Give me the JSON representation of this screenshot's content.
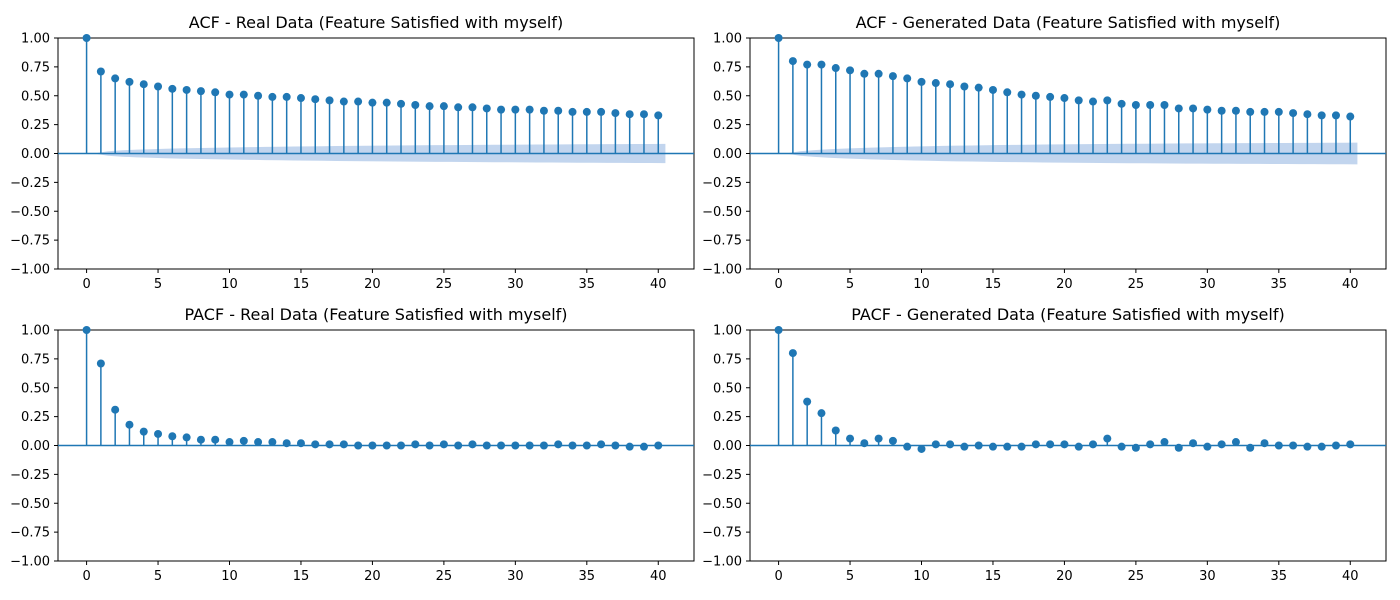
{
  "colors": {
    "stem": "#1f77b4",
    "confidence_band": "#aec7e8",
    "axis": "#000000",
    "background": "#ffffff"
  },
  "chart_data": [
    {
      "id": "acf-real",
      "type": "stem",
      "title": "ACF - Real Data (Feature Satisfied with myself)",
      "xlabel": "",
      "ylabel": "",
      "xlim": [
        -2,
        42.5
      ],
      "ylim": [
        -1.0,
        1.0
      ],
      "xticks": [
        0,
        5,
        10,
        15,
        20,
        25,
        30,
        35,
        40
      ],
      "yticks": [
        1.0,
        0.75,
        0.5,
        0.25,
        0.0,
        -0.25,
        -0.5,
        -0.75,
        -1.0
      ],
      "ytick_labels": [
        "1.00",
        "0.75",
        "0.50",
        "0.25",
        "0.00",
        "−0.25",
        "−0.50",
        "−0.75",
        "−1.00"
      ],
      "grid": false,
      "confidence_band": true,
      "x": [
        0,
        1,
        2,
        3,
        4,
        5,
        6,
        7,
        8,
        9,
        10,
        11,
        12,
        13,
        14,
        15,
        16,
        17,
        18,
        19,
        20,
        21,
        22,
        23,
        24,
        25,
        26,
        27,
        28,
        29,
        30,
        31,
        32,
        33,
        34,
        35,
        36,
        37,
        38,
        39,
        40
      ],
      "values": [
        1.0,
        0.71,
        0.65,
        0.62,
        0.6,
        0.58,
        0.56,
        0.55,
        0.54,
        0.53,
        0.51,
        0.51,
        0.5,
        0.49,
        0.49,
        0.48,
        0.47,
        0.46,
        0.45,
        0.45,
        0.44,
        0.44,
        0.43,
        0.42,
        0.41,
        0.41,
        0.4,
        0.4,
        0.39,
        0.38,
        0.38,
        0.38,
        0.37,
        0.37,
        0.36,
        0.36,
        0.36,
        0.35,
        0.34,
        0.34,
        0.33
      ]
    },
    {
      "id": "acf-generated",
      "type": "stem",
      "title": "ACF - Generated Data (Feature Satisfied with myself)",
      "xlabel": "",
      "ylabel": "",
      "xlim": [
        -2,
        42.5
      ],
      "ylim": [
        -1.0,
        1.0
      ],
      "xticks": [
        0,
        5,
        10,
        15,
        20,
        25,
        30,
        35,
        40
      ],
      "yticks": [
        1.0,
        0.75,
        0.5,
        0.25,
        0.0,
        -0.25,
        -0.5,
        -0.75,
        -1.0
      ],
      "ytick_labels": [
        "1.00",
        "0.75",
        "0.50",
        "0.25",
        "0.00",
        "−0.25",
        "−0.50",
        "−0.75",
        "−1.00"
      ],
      "grid": false,
      "confidence_band": true,
      "x": [
        0,
        1,
        2,
        3,
        4,
        5,
        6,
        7,
        8,
        9,
        10,
        11,
        12,
        13,
        14,
        15,
        16,
        17,
        18,
        19,
        20,
        21,
        22,
        23,
        24,
        25,
        26,
        27,
        28,
        29,
        30,
        31,
        32,
        33,
        34,
        35,
        36,
        37,
        38,
        39,
        40
      ],
      "values": [
        1.0,
        0.8,
        0.77,
        0.77,
        0.74,
        0.72,
        0.69,
        0.69,
        0.67,
        0.65,
        0.62,
        0.61,
        0.6,
        0.58,
        0.57,
        0.55,
        0.53,
        0.51,
        0.5,
        0.49,
        0.48,
        0.46,
        0.45,
        0.46,
        0.43,
        0.42,
        0.42,
        0.42,
        0.39,
        0.39,
        0.38,
        0.37,
        0.37,
        0.36,
        0.36,
        0.36,
        0.35,
        0.34,
        0.33,
        0.33,
        0.32
      ]
    },
    {
      "id": "pacf-real",
      "type": "stem",
      "title": "PACF - Real Data (Feature Satisfied with myself)",
      "xlabel": "",
      "ylabel": "",
      "xlim": [
        -2,
        42.5
      ],
      "ylim": [
        -1.0,
        1.0
      ],
      "xticks": [
        0,
        5,
        10,
        15,
        20,
        25,
        30,
        35,
        40
      ],
      "yticks": [
        1.0,
        0.75,
        0.5,
        0.25,
        0.0,
        -0.25,
        -0.5,
        -0.75,
        -1.0
      ],
      "ytick_labels": [
        "1.00",
        "0.75",
        "0.50",
        "0.25",
        "0.00",
        "−0.25",
        "−0.50",
        "−0.75",
        "−1.00"
      ],
      "grid": false,
      "confidence_band": false,
      "x": [
        0,
        1,
        2,
        3,
        4,
        5,
        6,
        7,
        8,
        9,
        10,
        11,
        12,
        13,
        14,
        15,
        16,
        17,
        18,
        19,
        20,
        21,
        22,
        23,
        24,
        25,
        26,
        27,
        28,
        29,
        30,
        31,
        32,
        33,
        34,
        35,
        36,
        37,
        38,
        39,
        40
      ],
      "values": [
        1.0,
        0.71,
        0.31,
        0.18,
        0.12,
        0.1,
        0.08,
        0.07,
        0.05,
        0.05,
        0.03,
        0.04,
        0.03,
        0.03,
        0.02,
        0.02,
        0.01,
        0.01,
        0.01,
        0.0,
        0.0,
        0.0,
        0.0,
        0.01,
        0.0,
        0.01,
        0.0,
        0.01,
        0.0,
        0.0,
        0.0,
        0.0,
        0.0,
        0.01,
        0.0,
        0.0,
        0.01,
        0.0,
        -0.01,
        -0.01,
        0.0
      ]
    },
    {
      "id": "pacf-generated",
      "type": "stem",
      "title": "PACF - Generated Data (Feature Satisfied with myself)",
      "xlabel": "",
      "ylabel": "",
      "xlim": [
        -2,
        42.5
      ],
      "ylim": [
        -1.0,
        1.0
      ],
      "xticks": [
        0,
        5,
        10,
        15,
        20,
        25,
        30,
        35,
        40
      ],
      "yticks": [
        1.0,
        0.75,
        0.5,
        0.25,
        0.0,
        -0.25,
        -0.5,
        -0.75,
        -1.0
      ],
      "ytick_labels": [
        "1.00",
        "0.75",
        "0.50",
        "0.25",
        "0.00",
        "−0.25",
        "−0.50",
        "−0.75",
        "−1.00"
      ],
      "grid": false,
      "confidence_band": false,
      "x": [
        0,
        1,
        2,
        3,
        4,
        5,
        6,
        7,
        8,
        9,
        10,
        11,
        12,
        13,
        14,
        15,
        16,
        17,
        18,
        19,
        20,
        21,
        22,
        23,
        24,
        25,
        26,
        27,
        28,
        29,
        30,
        31,
        32,
        33,
        34,
        35,
        36,
        37,
        38,
        39,
        40
      ],
      "values": [
        1.0,
        0.8,
        0.38,
        0.28,
        0.13,
        0.06,
        0.02,
        0.06,
        0.04,
        -0.01,
        -0.03,
        0.01,
        0.01,
        -0.01,
        0.0,
        -0.01,
        -0.01,
        -0.01,
        0.01,
        0.01,
        0.01,
        -0.01,
        0.01,
        0.06,
        -0.01,
        -0.02,
        0.01,
        0.03,
        -0.02,
        0.02,
        -0.01,
        0.01,
        0.03,
        -0.02,
        0.02,
        0.0,
        0.0,
        -0.01,
        -0.01,
        0.0,
        0.01
      ]
    }
  ]
}
